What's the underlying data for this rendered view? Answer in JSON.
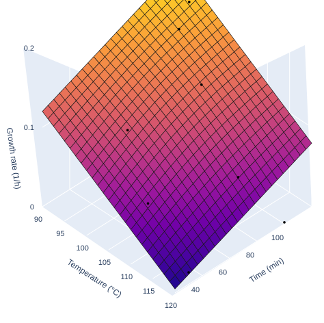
{
  "chart_data": {
    "type": "surface",
    "title": "",
    "axes": {
      "x": {
        "label": "Temperature (°C)",
        "range": [
          90,
          120
        ],
        "ticks": [
          90,
          95,
          100,
          105,
          110,
          115,
          120
        ],
        "tick_labels": [
          "90",
          "95",
          "100",
          "105",
          "110",
          "115",
          "120"
        ]
      },
      "y": {
        "label": "Time (min)",
        "range": [
          20,
          120
        ],
        "ticks": [
          40,
          60,
          80,
          100
        ],
        "tick_labels": [
          "40",
          "60",
          "80",
          "100"
        ]
      },
      "z": {
        "label": "Growth rate (1/h)",
        "range": [
          0,
          0.2
        ],
        "ticks": [
          0,
          0.1,
          0.2
        ],
        "tick_labels": [
          "0",
          "0.1",
          "0.2"
        ]
      }
    },
    "colorscale": [
      "#0d0887",
      "#46039f",
      "#7201a8",
      "#9c179e",
      "#bd3786",
      "#d8576b",
      "#ed7953",
      "#fb9f3a",
      "#fdca26",
      "#f0f921"
    ],
    "surface_corners": {
      "T90_t20": 0.12,
      "T90_t120": 0.195,
      "T120_t20": 0.005,
      "T120_t120": 0.08
    },
    "grid_resolution": 24,
    "grid": true,
    "points": [
      {
        "x": 96,
        "y": 108,
        "z": 0.184
      },
      {
        "x": 90,
        "y": 120,
        "z": 0.115
      },
      {
        "x": 96,
        "y": 117,
        "z": 0.07
      },
      {
        "x": 100,
        "y": 50,
        "z": 0.1
      },
      {
        "x": 108,
        "y": 105,
        "z": 0.01
      },
      {
        "x": 104,
        "y": 52,
        "z": 0.02
      },
      {
        "x": 120,
        "y": 30,
        "z": 0.015
      },
      {
        "x": 120,
        "y": 100,
        "z": 0.002
      }
    ]
  }
}
